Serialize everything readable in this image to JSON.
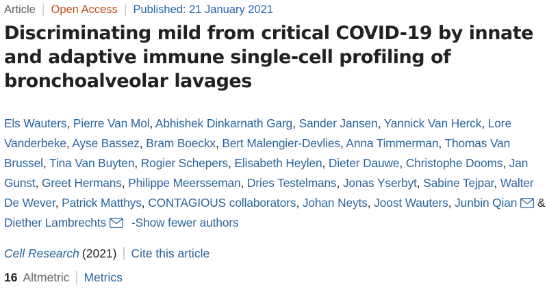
{
  "meta": {
    "type_label": "Article",
    "access_label": "Open Access",
    "published_label": "Published: 21 January 2021"
  },
  "title_lines": [
    "Discriminating mild from critical COVID-19 by innate",
    "and adaptive immune single-cell profiling of",
    "bronchoalveolar lavages"
  ],
  "authors": {
    "lines": [
      {
        "names": [
          "Els Wauters",
          "Pierre Van Mol",
          "Abhishek Dinkarnath Garg",
          "Sander Jansen",
          "Yannick Van Herck",
          "Lore"
        ]
      },
      {
        "names": [
          "Vanderbeke",
          "Ayse Bassez",
          "Bram Boeckx",
          "Bert Malengier-Devlies",
          "Anna Timmerman",
          "Thomas Van"
        ]
      },
      {
        "names": [
          "Brussel",
          "Tina Van Buyten",
          "Rogier Schepers",
          "Elisabeth Heylen",
          "Dieter Dauwe",
          "Christophe Dooms",
          "Jan"
        ]
      },
      {
        "names": [
          "Gunst",
          "Greet Hermans",
          "Philippe Meersseman",
          "Dries Testelmans",
          "Jonas Yserbyt",
          "Sabine Tejpar",
          "Walter"
        ]
      },
      {
        "names": [
          "De Wever",
          "Patrick Matthys",
          "CONTAGIOUS collaborators",
          "Johan Neyts",
          "Joost Wauters",
          "Junbin Qian"
        ],
        "envelope": true,
        "after_text": "&"
      },
      {
        "names": [
          "Diether Lambrechts"
        ],
        "envelope": true,
        "show_fewer": "-Show fewer authors"
      }
    ],
    "envelope_icon": "envelope-icon"
  },
  "journal": {
    "name": "Cell Research",
    "year": "(2021)",
    "cite_label": "Cite this article"
  },
  "metrics": {
    "altmetric_count": "16",
    "altmetric_label": "Altmetric",
    "metrics_label": "Metrics"
  },
  "colors": {
    "link_blue": "#29639c",
    "published_blue": "#2265ae",
    "open_access_orange": "#c04f17",
    "meta_gray": "#606060",
    "title_dark": "#222222"
  }
}
